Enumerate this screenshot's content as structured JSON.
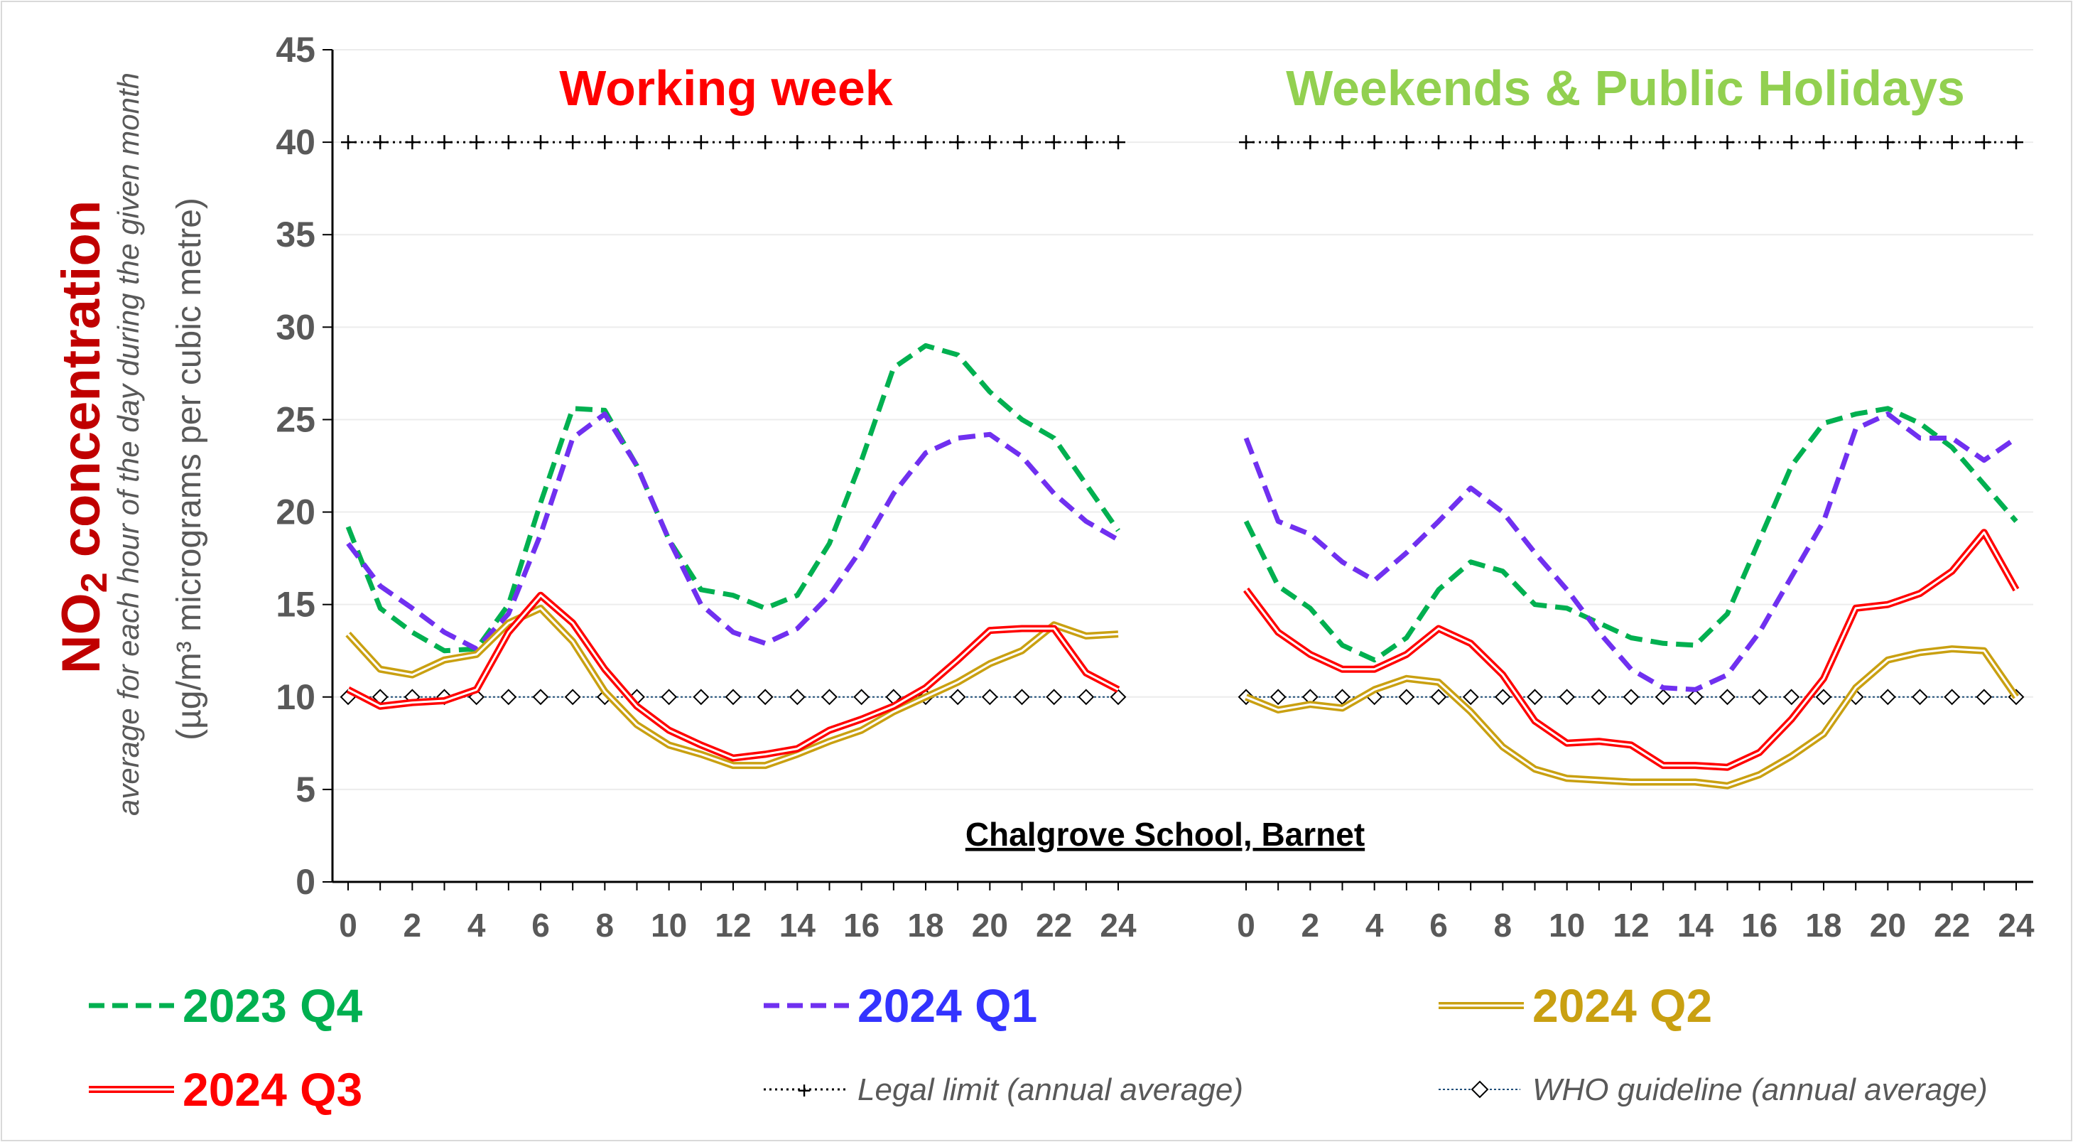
{
  "chart_data": {
    "type": "line",
    "title": "",
    "ylabel": {
      "main_prefix": "NO",
      "main_sub": "2",
      "main_suffix": " concentration",
      "line2": "average for each hour of the day during the given month",
      "line3": "(µg/m³ micrograms per cubic metre)"
    },
    "ylim": [
      0,
      45
    ],
    "yticks": [
      0,
      5,
      10,
      15,
      20,
      25,
      30,
      35,
      40,
      45
    ],
    "xticks": [
      0,
      2,
      4,
      6,
      8,
      10,
      12,
      14,
      16,
      18,
      20,
      22,
      24
    ],
    "location_label": "Chalgrove School, Barnet",
    "panels": [
      {
        "title": "Working week",
        "title_color": "#ff0000"
      },
      {
        "title": "Weekends & Public Holidays",
        "title_color": "#92d050"
      }
    ],
    "legend_placement": "bottom",
    "legal_limit": {
      "label": "Legal limit (annual average)",
      "value": 40
    },
    "who_guideline": {
      "label": "WHO guideline (annual average)",
      "value": 10
    },
    "series": [
      {
        "name": "2023 Q4",
        "color": "#00b050",
        "style": "dashed",
        "weekday": [
          19.2,
          14.8,
          13.5,
          12.5,
          12.6,
          15.0,
          20.5,
          25.6,
          25.5,
          22.5,
          18.5,
          15.8,
          15.5,
          14.8,
          15.5,
          18.3,
          22.8,
          27.8,
          29.0,
          28.5,
          26.5,
          25.0,
          24.0,
          21.5,
          19.0
        ],
        "weekend": [
          19.5,
          16.0,
          14.8,
          12.8,
          12.0,
          13.2,
          15.8,
          17.3,
          16.8,
          15.0,
          14.8,
          14.0,
          13.2,
          12.9,
          12.8,
          14.5,
          18.5,
          22.5,
          24.8,
          25.3,
          25.6,
          24.8,
          23.5,
          21.5,
          19.5
        ]
      },
      {
        "name": "2024 Q1",
        "color": "#7030f0",
        "style": "dashed",
        "weekday": [
          18.3,
          16.0,
          14.8,
          13.5,
          12.6,
          14.5,
          18.8,
          24.0,
          25.3,
          22.5,
          18.5,
          15.0,
          13.5,
          12.9,
          13.7,
          15.5,
          18.0,
          21.0,
          23.2,
          24.0,
          24.2,
          23.0,
          21.0,
          19.5,
          18.5
        ],
        "weekend": [
          24.0,
          19.5,
          18.8,
          17.3,
          16.3,
          17.8,
          19.5,
          21.3,
          20.0,
          17.8,
          15.8,
          13.5,
          11.5,
          10.5,
          10.4,
          11.2,
          13.5,
          16.5,
          19.5,
          24.5,
          25.3,
          24.0,
          24.0,
          22.8,
          24.0
        ]
      },
      {
        "name": "2024 Q2",
        "color": "#c9a011",
        "style": "double",
        "weekday": [
          13.4,
          11.5,
          11.2,
          12.0,
          12.3,
          14.0,
          14.8,
          13.0,
          10.3,
          8.5,
          7.4,
          6.9,
          6.3,
          6.3,
          6.9,
          7.6,
          8.2,
          9.2,
          10.0,
          10.8,
          11.8,
          12.5,
          13.9,
          13.3,
          13.4
        ],
        "weekend": [
          10.0,
          9.3,
          9.6,
          9.4,
          10.4,
          11.0,
          10.8,
          9.2,
          7.3,
          6.1,
          5.6,
          5.5,
          5.4,
          5.4,
          5.4,
          5.2,
          5.8,
          6.8,
          8.0,
          10.5,
          12.0,
          12.4,
          12.6,
          12.5,
          10.0
        ]
      },
      {
        "name": "2024 Q3",
        "color": "#ff0000",
        "style": "double",
        "weekday": [
          10.4,
          9.5,
          9.7,
          9.8,
          10.4,
          13.5,
          15.5,
          14.0,
          11.5,
          9.5,
          8.2,
          7.4,
          6.7,
          6.9,
          7.2,
          8.2,
          8.8,
          9.5,
          10.5,
          12.0,
          13.6,
          13.7,
          13.7,
          11.3,
          10.4
        ],
        "weekend": [
          15.8,
          13.5,
          12.3,
          11.5,
          11.5,
          12.3,
          13.7,
          12.9,
          11.2,
          8.7,
          7.5,
          7.6,
          7.4,
          6.3,
          6.3,
          6.2,
          7.0,
          8.8,
          11.0,
          14.8,
          15.0,
          15.6,
          16.8,
          18.9,
          15.8
        ]
      }
    ]
  }
}
